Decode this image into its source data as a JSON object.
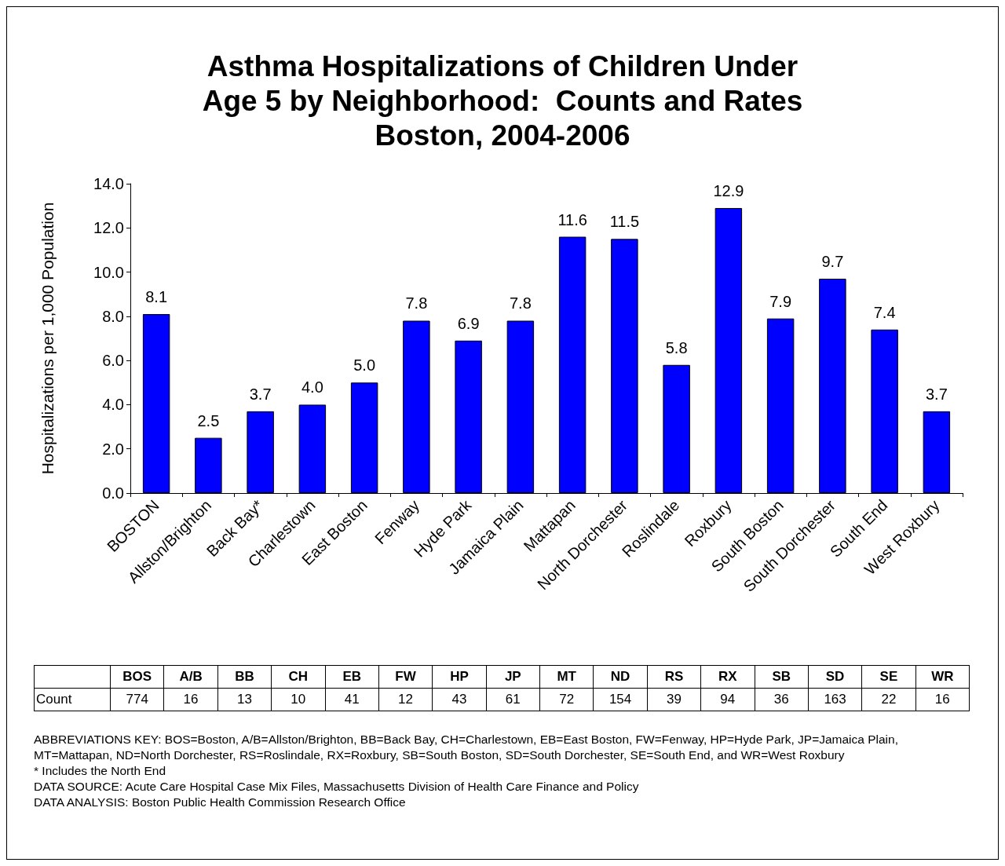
{
  "chart_data": [
    {
      "type": "bar",
      "title": "Asthma Hospitalizations of Children Under\nAge 5 by Neighborhood:  Counts and Rates\nBoston, 2004-2006",
      "ylabel": "Hospitalizations per 1,000 Population",
      "categories": [
        "BOSTON",
        "Allston/Brighton",
        "Back Bay*",
        "Charlestown",
        "East Boston",
        "Fenway",
        "Hyde Park",
        "Jamaica Plain",
        "Mattapan",
        "North Dorchester",
        "Roslindale",
        "Roxbury",
        "South Boston",
        "South Dorchester",
        "South End",
        "West Roxbury"
      ],
      "values": [
        8.1,
        2.5,
        3.7,
        4.0,
        5.0,
        7.8,
        6.9,
        7.8,
        11.6,
        11.5,
        5.8,
        12.9,
        7.9,
        9.7,
        7.4,
        3.7
      ],
      "value_labels": [
        "8.1",
        "2.5",
        "3.7",
        "4.0",
        "5.0",
        "7.8",
        "6.9",
        "7.8",
        "11.6",
        "11.5",
        "5.8",
        "12.9",
        "7.9",
        "9.7",
        "7.4",
        "3.7"
      ],
      "color": "#0000ff",
      "ylim": [
        0,
        14
      ],
      "yticks": [
        {
          "value": 0,
          "label": "0.0"
        },
        {
          "value": 2,
          "label": "2.0"
        },
        {
          "value": 4,
          "label": "4.0"
        },
        {
          "value": 6,
          "label": "6.0"
        },
        {
          "value": 8,
          "label": "8.0"
        },
        {
          "value": 10,
          "label": "10.0"
        },
        {
          "value": 12,
          "label": "12.0"
        },
        {
          "value": 14,
          "label": "14.0"
        }
      ],
      "grid": false
    },
    {
      "type": "other",
      "ylabel": "Count",
      "categories": [
        "BOS",
        "A/B",
        "BB",
        "CH",
        "EB",
        "FW",
        "HP",
        "JP",
        "MT",
        "ND",
        "RS",
        "RX",
        "SB",
        "SD",
        "SE",
        "WR"
      ],
      "values": [
        774,
        16,
        13,
        10,
        41,
        12,
        43,
        61,
        72,
        154,
        39,
        94,
        36,
        163,
        22,
        16
      ],
      "data_labels": true,
      "annotations": [
        "ABBREVIATIONS KEY:  BOS=Boston, A/B=Allston/Brighton, BB=Back Bay, CH=Charlestown, EB=East Boston, FW=Fenway, HP=Hyde Park, JP=Jamaica Plain, MT=Mattapan, ND=North Dorchester, RS=Roslindale, RX=Roxbury, SB=South Boston, SD=South Dorchester, SE=South End, and WR=West Roxbury",
        "* Includes the North End",
        "DATA SOURCE: Acute Care Hospital Case Mix Files, Massachusetts Division of Health Care Finance and Policy",
        "DATA ANALYSIS:  Boston Public Health Commission Research Office"
      ]
    }
  ]
}
